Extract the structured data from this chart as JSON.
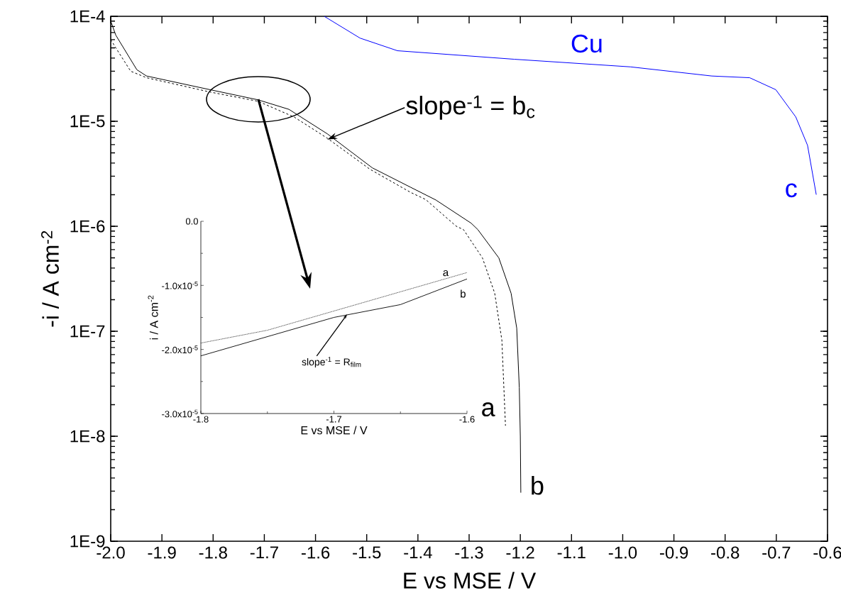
{
  "chart_data": [
    {
      "type": "line",
      "xlabel": "E vs MSE / V",
      "ylabel": "-i / A cm$^{-2}$",
      "log": "y",
      "xlim": [
        -2.0,
        -0.6
      ],
      "ylim": [
        1e-09,
        0.0001
      ],
      "xticks": [
        {
          "value": -2.0,
          "label": "-2.0"
        },
        {
          "value": -1.9,
          "label": "-1.9"
        },
        {
          "value": -1.8,
          "label": "-1.8"
        },
        {
          "value": -1.7,
          "label": "-1.7"
        },
        {
          "value": -1.6,
          "label": "-1.6"
        },
        {
          "value": -1.5,
          "label": "-1.5"
        },
        {
          "value": -1.4,
          "label": "-1.4"
        },
        {
          "value": -1.3,
          "label": "-1.3"
        },
        {
          "value": -1.2,
          "label": "-1.2"
        },
        {
          "value": -1.1,
          "label": "-1.1"
        },
        {
          "value": -1.0,
          "label": "-1.0"
        },
        {
          "value": -0.9,
          "label": "-0.9"
        },
        {
          "value": -0.8,
          "label": "-0.8"
        },
        {
          "value": -0.7,
          "label": "-0.7"
        },
        {
          "value": -0.6,
          "label": "-0.6"
        }
      ],
      "yticks": [
        {
          "value": 1e-09,
          "label": "1E-9"
        },
        {
          "value": 1e-08,
          "label": "1E-8"
        },
        {
          "value": 1e-07,
          "label": "1E-7"
        },
        {
          "value": 1e-06,
          "label": "1E-6"
        },
        {
          "value": 1e-05,
          "label": "1E-5"
        },
        {
          "value": 0.0001,
          "label": "1E-4"
        }
      ],
      "series": [
        {
          "color": "#000000",
          "line_style": "dashed",
          "x": [
            -2.0,
            -1.99,
            -1.961,
            -1.93,
            -1.806,
            -1.712,
            -1.642,
            -1.577,
            -1.494,
            -1.414,
            -1.385,
            -1.325,
            -1.311,
            -1.274,
            -1.25,
            -1.236,
            -1.229
          ],
          "values": [
            6e-05,
            5e-05,
            3e-05,
            2.6e-05,
            1.9e-05,
            1.55e-05,
            1.1e-05,
            6.9e-06,
            3.5e-06,
            2.1e-06,
            1.8e-06,
            1e-06,
            9.3e-07,
            5e-07,
            2.3e-07,
            8.2e-08,
            1.26e-08
          ]
        },
        {
          "color": "#000000",
          "line_style": "solid",
          "x": [
            -2.0,
            -1.99,
            -1.949,
            -1.93,
            -1.806,
            -1.712,
            -1.652,
            -1.577,
            -1.489,
            -1.414,
            -1.365,
            -1.296,
            -1.283,
            -1.242,
            -1.218,
            -1.207,
            -1.202,
            -1.2,
            -1.199
          ],
          "values": [
            9e-05,
            6.6e-05,
            3.1e-05,
            2.7e-05,
            2e-05,
            1.6e-05,
            1.3e-05,
            7.6e-06,
            3.6e-06,
            2.35e-06,
            1.78e-06,
            1.07e-06,
            9.3e-07,
            5e-07,
            2.3e-07,
            1.07e-07,
            2.9e-08,
            1e-08,
            2.9e-09
          ]
        },
        {
          "color": "#0000ff",
          "line_style": "solid",
          "x": [
            -1.583,
            -1.513,
            -1.44,
            -1.212,
            -0.985,
            -0.826,
            -0.752,
            -0.701,
            -0.662,
            -0.639,
            -0.622
          ],
          "values": [
            0.0001,
            6.2e-05,
            4.7e-05,
            3.9e-05,
            3.3e-05,
            2.7e-05,
            2.6e-05,
            2e-05,
            1.1e-05,
            5.9e-06,
            2e-06
          ]
        }
      ],
      "annotations": [
        "Cu",
        "c",
        "a",
        "b",
        {
          "text": "slope$^{-1}$ = b$_{c}$",
          "x": -1.577,
          "y": 6.7e-06
        }
      ]
    },
    {
      "type": "line",
      "xlabel": "E vs MSE / V",
      "ylabel": "i / A cm$^{-2}$",
      "xlim": [
        -1.8,
        -1.6
      ],
      "ylim": [
        -3e-05,
        0.0
      ],
      "xticks": [
        {
          "value": -1.8,
          "label": "-1.8"
        },
        {
          "value": -1.7,
          "label": "-1.7"
        },
        {
          "value": -1.6,
          "label": "-1.6"
        }
      ],
      "yticks": [
        {
          "value": -3e-05,
          "label": "-3.0x10$^{-5}$"
        },
        {
          "value": -2e-05,
          "label": "-2.0x10$^{-5}$"
        },
        {
          "value": -1e-05,
          "label": "-1.0x10$^{-5}$"
        },
        {
          "value": 0.0,
          "label": "0.0"
        }
      ],
      "series": [
        {
          "color": "#000000",
          "line_style": "dotted",
          "x": [
            -1.8,
            -1.75,
            -1.7,
            -1.65,
            -1.6
          ],
          "values": [
            -1.9e-05,
            -1.7e-05,
            -1.4e-05,
            -1.1e-05,
            -8e-06
          ]
        },
        {
          "color": "#000000",
          "line_style": "solid",
          "x": [
            -1.8,
            -1.75,
            -1.7,
            -1.65,
            -1.6
          ],
          "values": [
            -2.1e-05,
            -1.8e-05,
            -1.5e-05,
            -1.3e-05,
            -9e-06
          ]
        }
      ],
      "annotations": [
        "a",
        "b",
        {
          "text": "slope$^{-1}$ = R$_{film}$",
          "x": -1.69,
          "y": -1.45e-05
        }
      ]
    }
  ]
}
